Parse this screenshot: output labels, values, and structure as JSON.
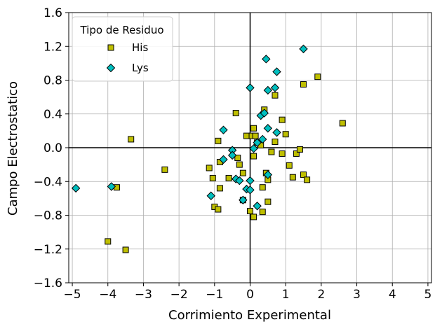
{
  "chart_data": {
    "type": "scatter",
    "title": "",
    "xlabel": "Corrimiento Experimental",
    "ylabel": "Campo Electrostatico",
    "xlim": [
      -5.1,
      5.1
    ],
    "ylim": [
      -1.6,
      1.6
    ],
    "xticks": [
      -5,
      -4,
      -3,
      -2,
      -1,
      0,
      1,
      2,
      3,
      4,
      5
    ],
    "yticks": [
      -1.6,
      -1.2,
      -0.8,
      -0.4,
      0.0,
      0.4,
      0.8,
      1.2,
      1.6
    ],
    "xtick_labels": [
      "−5",
      "−4",
      "−3",
      "−2",
      "−1",
      "0",
      "1",
      "2",
      "3",
      "4",
      "5"
    ],
    "ytick_labels": [
      "−1.6",
      "−1.2",
      "−0.8",
      "−0.4",
      "0.0",
      "0.4",
      "0.8",
      "1.2",
      "1.6"
    ],
    "grid": true,
    "zero_lines": true,
    "legend": {
      "title": "Tipo de Residuo",
      "placement": "top-left"
    },
    "series": [
      {
        "name": "His",
        "marker": "square",
        "color": "#bfbf00",
        "points": [
          [
            -4.0,
            -1.11
          ],
          [
            -3.5,
            -1.21
          ],
          [
            -3.35,
            0.1
          ],
          [
            -3.75,
            -0.47
          ],
          [
            -2.4,
            -0.26
          ],
          [
            -1.15,
            -0.24
          ],
          [
            -1.0,
            -0.7
          ],
          [
            -1.05,
            -0.36
          ],
          [
            -0.9,
            -0.73
          ],
          [
            -0.9,
            0.08
          ],
          [
            -0.85,
            -0.48
          ],
          [
            -0.85,
            -0.17
          ],
          [
            -0.6,
            -0.36
          ],
          [
            -0.4,
            0.41
          ],
          [
            -0.35,
            -0.12
          ],
          [
            -0.3,
            -0.2
          ],
          [
            -0.2,
            -0.3
          ],
          [
            -0.2,
            -0.62
          ],
          [
            -0.1,
            0.14
          ],
          [
            0.0,
            -0.75
          ],
          [
            0.05,
            0.14
          ],
          [
            0.1,
            0.23
          ],
          [
            0.1,
            -0.1
          ],
          [
            0.1,
            -0.82
          ],
          [
            0.15,
            0.14
          ],
          [
            0.2,
            0.06
          ],
          [
            0.3,
            0.03
          ],
          [
            0.35,
            -0.47
          ],
          [
            0.35,
            -0.76
          ],
          [
            0.4,
            0.45
          ],
          [
            0.45,
            -0.3
          ],
          [
            0.5,
            -0.64
          ],
          [
            0.5,
            -0.38
          ],
          [
            0.6,
            -0.05
          ],
          [
            0.7,
            0.62
          ],
          [
            0.7,
            0.07
          ],
          [
            0.9,
            0.33
          ],
          [
            0.9,
            -0.07
          ],
          [
            1.0,
            0.16
          ],
          [
            1.1,
            -0.21
          ],
          [
            1.2,
            -0.35
          ],
          [
            1.3,
            -0.07
          ],
          [
            1.4,
            -0.02
          ],
          [
            1.5,
            0.75
          ],
          [
            1.5,
            -0.32
          ],
          [
            1.6,
            -0.38
          ],
          [
            1.9,
            0.84
          ],
          [
            2.6,
            0.29
          ]
        ]
      },
      {
        "name": "Lys",
        "marker": "diamond",
        "color": "#00bfbf",
        "points": [
          [
            -4.9,
            -0.48
          ],
          [
            -3.9,
            -0.46
          ],
          [
            -1.1,
            -0.57
          ],
          [
            -0.75,
            0.21
          ],
          [
            -0.75,
            -0.14
          ],
          [
            -0.5,
            -0.03
          ],
          [
            -0.5,
            -0.09
          ],
          [
            -0.4,
            -0.37
          ],
          [
            -0.3,
            -0.39
          ],
          [
            -0.2,
            -0.62
          ],
          [
            -0.1,
            -0.49
          ],
          [
            0.0,
            -0.5
          ],
          [
            0.0,
            -0.39
          ],
          [
            0.0,
            0.71
          ],
          [
            0.1,
            -0.01
          ],
          [
            0.2,
            -0.69
          ],
          [
            0.2,
            0.06
          ],
          [
            0.3,
            0.38
          ],
          [
            0.35,
            0.1
          ],
          [
            0.4,
            0.41
          ],
          [
            0.45,
            1.05
          ],
          [
            0.5,
            0.68
          ],
          [
            0.5,
            0.23
          ],
          [
            0.5,
            -0.32
          ],
          [
            0.7,
            0.71
          ],
          [
            0.75,
            0.9
          ],
          [
            0.75,
            0.18
          ],
          [
            1.5,
            1.17
          ]
        ]
      }
    ]
  }
}
